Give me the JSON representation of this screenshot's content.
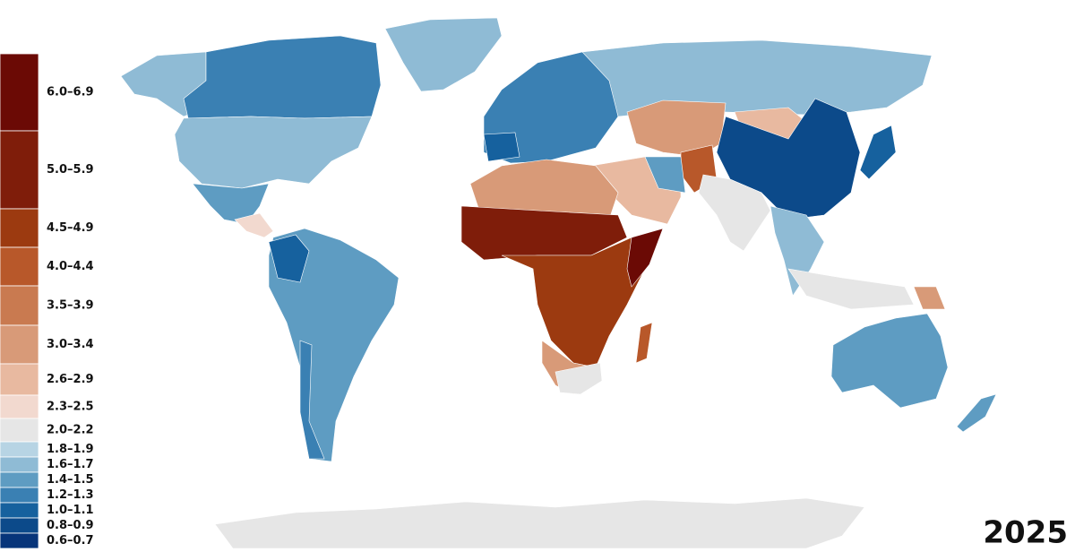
{
  "legend": {
    "bins": [
      {
        "label": "6.0–6.9",
        "color": "#6b0a05"
      },
      {
        "label": "5.0–5.9",
        "color": "#7f1d0a"
      },
      {
        "label": "4.5–4.9",
        "color": "#9c3a10"
      },
      {
        "label": "4.0–4.4",
        "color": "#b8582a"
      },
      {
        "label": "3.5–3.9",
        "color": "#c97a50"
      },
      {
        "label": "3.0–3.4",
        "color": "#d89a78"
      },
      {
        "label": "2.6–2.9",
        "color": "#e8b9a0"
      },
      {
        "label": "2.3–2.5",
        "color": "#f2d9cf"
      },
      {
        "label": "2.0–2.2",
        "color": "#e6e6e6"
      },
      {
        "label": "1.8–1.9",
        "color": "#b7d4e4"
      },
      {
        "label": "1.6–1.7",
        "color": "#8fbbd5"
      },
      {
        "label": "1.4–1.5",
        "color": "#5e9cc2"
      },
      {
        "label": "1.2–1.3",
        "color": "#3a80b3"
      },
      {
        "label": "1.0–1.1",
        "color": "#16619e"
      },
      {
        "label": "0.8–0.9",
        "color": "#0c4a8a"
      },
      {
        "label": "0.6–0.7",
        "color": "#07357a"
      }
    ]
  },
  "year": "2025"
}
